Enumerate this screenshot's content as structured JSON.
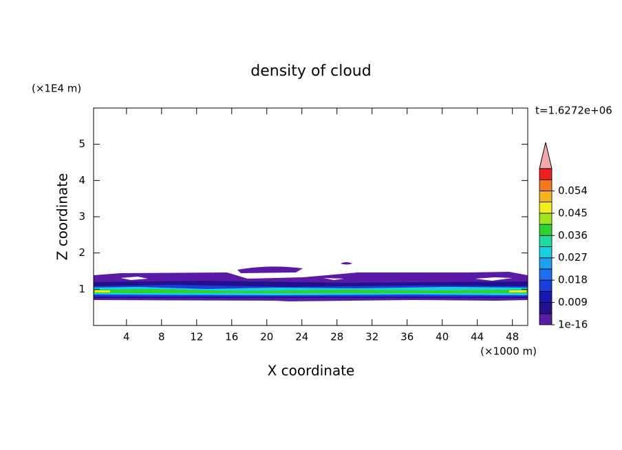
{
  "chart_data": {
    "type": "contour",
    "title": "density of cloud",
    "x_label": "X coordinate",
    "x_unit": "(×1000 m)",
    "y_label": "Z coordinate",
    "y_unit": "(×1E4 m)",
    "time_label": "t=1.6272e+06",
    "xlim": [
      0.25,
      49.75
    ],
    "xticks": [
      4,
      8,
      12,
      16,
      20,
      24,
      28,
      32,
      36,
      40,
      44,
      48
    ],
    "ylim": [
      0,
      6
    ],
    "yticks": [
      1,
      2,
      3,
      4,
      5
    ],
    "colorbar": {
      "lim": [
        0,
        0.063
      ],
      "ticks": [
        1e-16,
        0.009,
        0.018,
        0.027,
        0.036,
        0.045,
        0.054
      ],
      "colors": [
        "#5a1aa6",
        "#22108c",
        "#1818b0",
        "#1a3edc",
        "#1e6ef0",
        "#1ea0f0",
        "#19d0e0",
        "#1edca0",
        "#2ed22e",
        "#a0e61e",
        "#f0f01e",
        "#f0b41e",
        "#f0781e",
        "#f01e1e"
      ],
      "extend_color": "#f4a8a8"
    }
  }
}
